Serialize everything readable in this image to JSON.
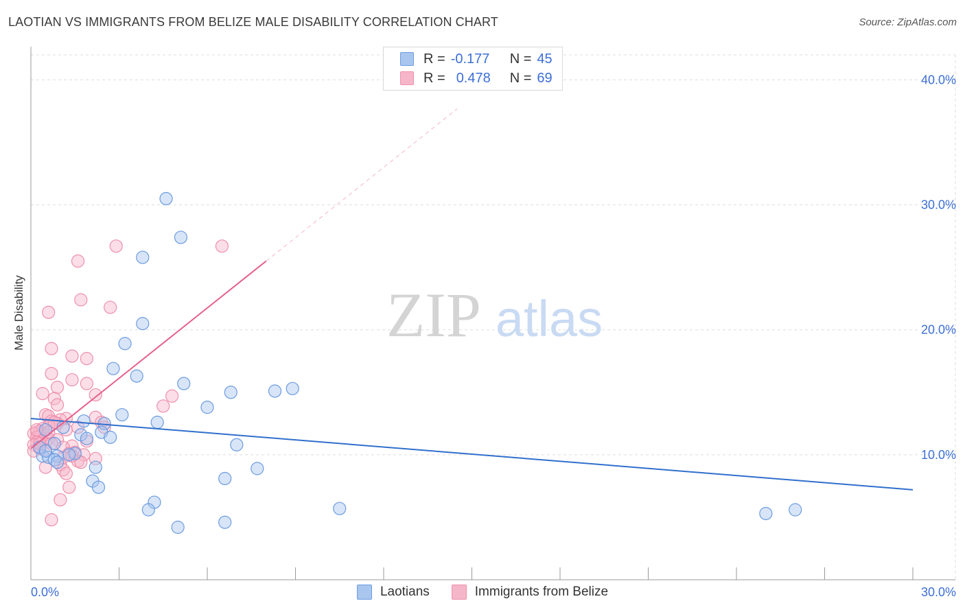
{
  "header": {
    "title": "LAOTIAN VS IMMIGRANTS FROM BELIZE MALE DISABILITY CORRELATION CHART",
    "source": "Source: ZipAtlas.com"
  },
  "watermark": {
    "zip": "ZIP",
    "atlas": "atlas"
  },
  "legend_top": {
    "rows": [
      {
        "r_label": "R =",
        "r_value": "-0.177",
        "n_label": "N =",
        "n_value": "45"
      },
      {
        "r_label": "R =",
        "r_value": "0.478",
        "n_label": "N =",
        "n_value": "69"
      }
    ]
  },
  "colors": {
    "blue_fill": "#a9c6ef",
    "blue_stroke": "#6b9be0",
    "blue_line": "#2f6fcc",
    "pink_fill": "#f6b6c9",
    "pink_stroke": "#ee8fab",
    "pink_line": "#e5608a",
    "tick_text": "#3b6fd4",
    "grid": "#dddddd"
  },
  "chart_data": {
    "type": "scatter",
    "title": "LAOTIAN VS IMMIGRANTS FROM BELIZE MALE DISABILITY CORRELATION CHART",
    "xlabel": "",
    "ylabel": "Male Disability",
    "xlim": [
      0,
      30
    ],
    "ylim": [
      0,
      42
    ],
    "x_tick_labels": [
      "0.0%",
      "30.0%"
    ],
    "y_ticks": [
      10,
      20,
      30,
      40
    ],
    "y_tick_labels": [
      "10.0%",
      "20.0%",
      "30.0%",
      "40.0%"
    ],
    "grid": true,
    "legend_position": "bottom",
    "series": [
      {
        "name": "Laotians",
        "color": "#6b9be0",
        "trend": {
          "x": [
            0,
            30
          ],
          "y": [
            12.9,
            7.2
          ],
          "dashed_x_end": 30
        },
        "points": [
          [
            4.6,
            30.5
          ],
          [
            5.1,
            27.4
          ],
          [
            3.8,
            25.8
          ],
          [
            3.8,
            20.5
          ],
          [
            3.2,
            18.9
          ],
          [
            2.8,
            16.9
          ],
          [
            3.6,
            16.3
          ],
          [
            5.2,
            15.7
          ],
          [
            6.8,
            15.0
          ],
          [
            8.3,
            15.1
          ],
          [
            8.9,
            15.3
          ],
          [
            6.0,
            13.8
          ],
          [
            3.1,
            13.2
          ],
          [
            1.8,
            12.7
          ],
          [
            2.5,
            12.5
          ],
          [
            4.3,
            12.6
          ],
          [
            0.5,
            12.0
          ],
          [
            2.4,
            11.8
          ],
          [
            1.7,
            11.6
          ],
          [
            2.7,
            11.4
          ],
          [
            1.9,
            11.3
          ],
          [
            0.8,
            10.9
          ],
          [
            7.0,
            10.8
          ],
          [
            1.5,
            10.1
          ],
          [
            1.3,
            10.0
          ],
          [
            0.9,
            9.9
          ],
          [
            0.4,
            9.9
          ],
          [
            0.6,
            9.8
          ],
          [
            0.8,
            9.6
          ],
          [
            0.9,
            9.4
          ],
          [
            2.2,
            9.0
          ],
          [
            7.7,
            8.9
          ],
          [
            6.6,
            8.1
          ],
          [
            2.1,
            7.9
          ],
          [
            2.3,
            7.4
          ],
          [
            4.2,
            6.2
          ],
          [
            4.0,
            5.6
          ],
          [
            10.5,
            5.7
          ],
          [
            5.0,
            4.2
          ],
          [
            6.6,
            4.6
          ],
          [
            25.0,
            5.3
          ],
          [
            26.0,
            5.6
          ],
          [
            0.3,
            10.6
          ],
          [
            0.5,
            10.3
          ],
          [
            1.1,
            12.2
          ]
        ]
      },
      {
        "name": "Immigrants from Belize",
        "color": "#ee8fab",
        "trend": {
          "x": [
            0,
            8
          ],
          "y": [
            10.5,
            25.5
          ],
          "dashed_x_end": 14.5
        },
        "points": [
          [
            2.9,
            26.7
          ],
          [
            6.5,
            26.7
          ],
          [
            1.6,
            25.5
          ],
          [
            1.7,
            22.4
          ],
          [
            2.7,
            21.8
          ],
          [
            0.6,
            21.4
          ],
          [
            0.7,
            18.5
          ],
          [
            1.4,
            17.9
          ],
          [
            1.9,
            17.7
          ],
          [
            0.7,
            16.5
          ],
          [
            1.4,
            16.0
          ],
          [
            1.9,
            15.7
          ],
          [
            0.9,
            15.4
          ],
          [
            0.4,
            14.9
          ],
          [
            2.2,
            14.8
          ],
          [
            4.8,
            14.7
          ],
          [
            0.8,
            14.5
          ],
          [
            4.5,
            13.9
          ],
          [
            0.9,
            14.0
          ],
          [
            0.5,
            13.2
          ],
          [
            0.6,
            13.1
          ],
          [
            2.2,
            13.0
          ],
          [
            1.2,
            12.9
          ],
          [
            1.0,
            12.8
          ],
          [
            0.7,
            12.7
          ],
          [
            0.9,
            12.5
          ],
          [
            0.6,
            12.3
          ],
          [
            0.4,
            12.1
          ],
          [
            1.2,
            12.0
          ],
          [
            0.3,
            11.9
          ],
          [
            0.2,
            11.8
          ],
          [
            0.1,
            11.7
          ],
          [
            0.5,
            11.6
          ],
          [
            0.3,
            11.5
          ],
          [
            0.2,
            11.4
          ],
          [
            0.6,
            11.3
          ],
          [
            0.9,
            11.2
          ],
          [
            0.4,
            11.1
          ],
          [
            0.2,
            11.0
          ],
          [
            0.7,
            10.9
          ],
          [
            0.1,
            10.8
          ],
          [
            1.4,
            10.7
          ],
          [
            1.1,
            10.6
          ],
          [
            0.3,
            10.5
          ],
          [
            0.5,
            10.4
          ],
          [
            0.1,
            10.3
          ],
          [
            1.5,
            10.2
          ],
          [
            1.3,
            10.1
          ],
          [
            1.8,
            10.0
          ],
          [
            1.4,
            9.9
          ],
          [
            1.1,
            9.8
          ],
          [
            2.2,
            9.7
          ],
          [
            1.6,
            9.5
          ],
          [
            1.7,
            9.4
          ],
          [
            1.0,
            9.2
          ],
          [
            0.5,
            9.0
          ],
          [
            1.1,
            8.8
          ],
          [
            1.2,
            8.5
          ],
          [
            1.3,
            7.4
          ],
          [
            1.0,
            6.4
          ],
          [
            0.7,
            4.8
          ],
          [
            2.4,
            12.6
          ],
          [
            1.9,
            11.1
          ],
          [
            2.5,
            12.2
          ],
          [
            0.8,
            12.6
          ],
          [
            0.6,
            11.8
          ],
          [
            1.6,
            12.2
          ],
          [
            0.3,
            10.9
          ],
          [
            0.2,
            12.0
          ]
        ]
      }
    ]
  }
}
